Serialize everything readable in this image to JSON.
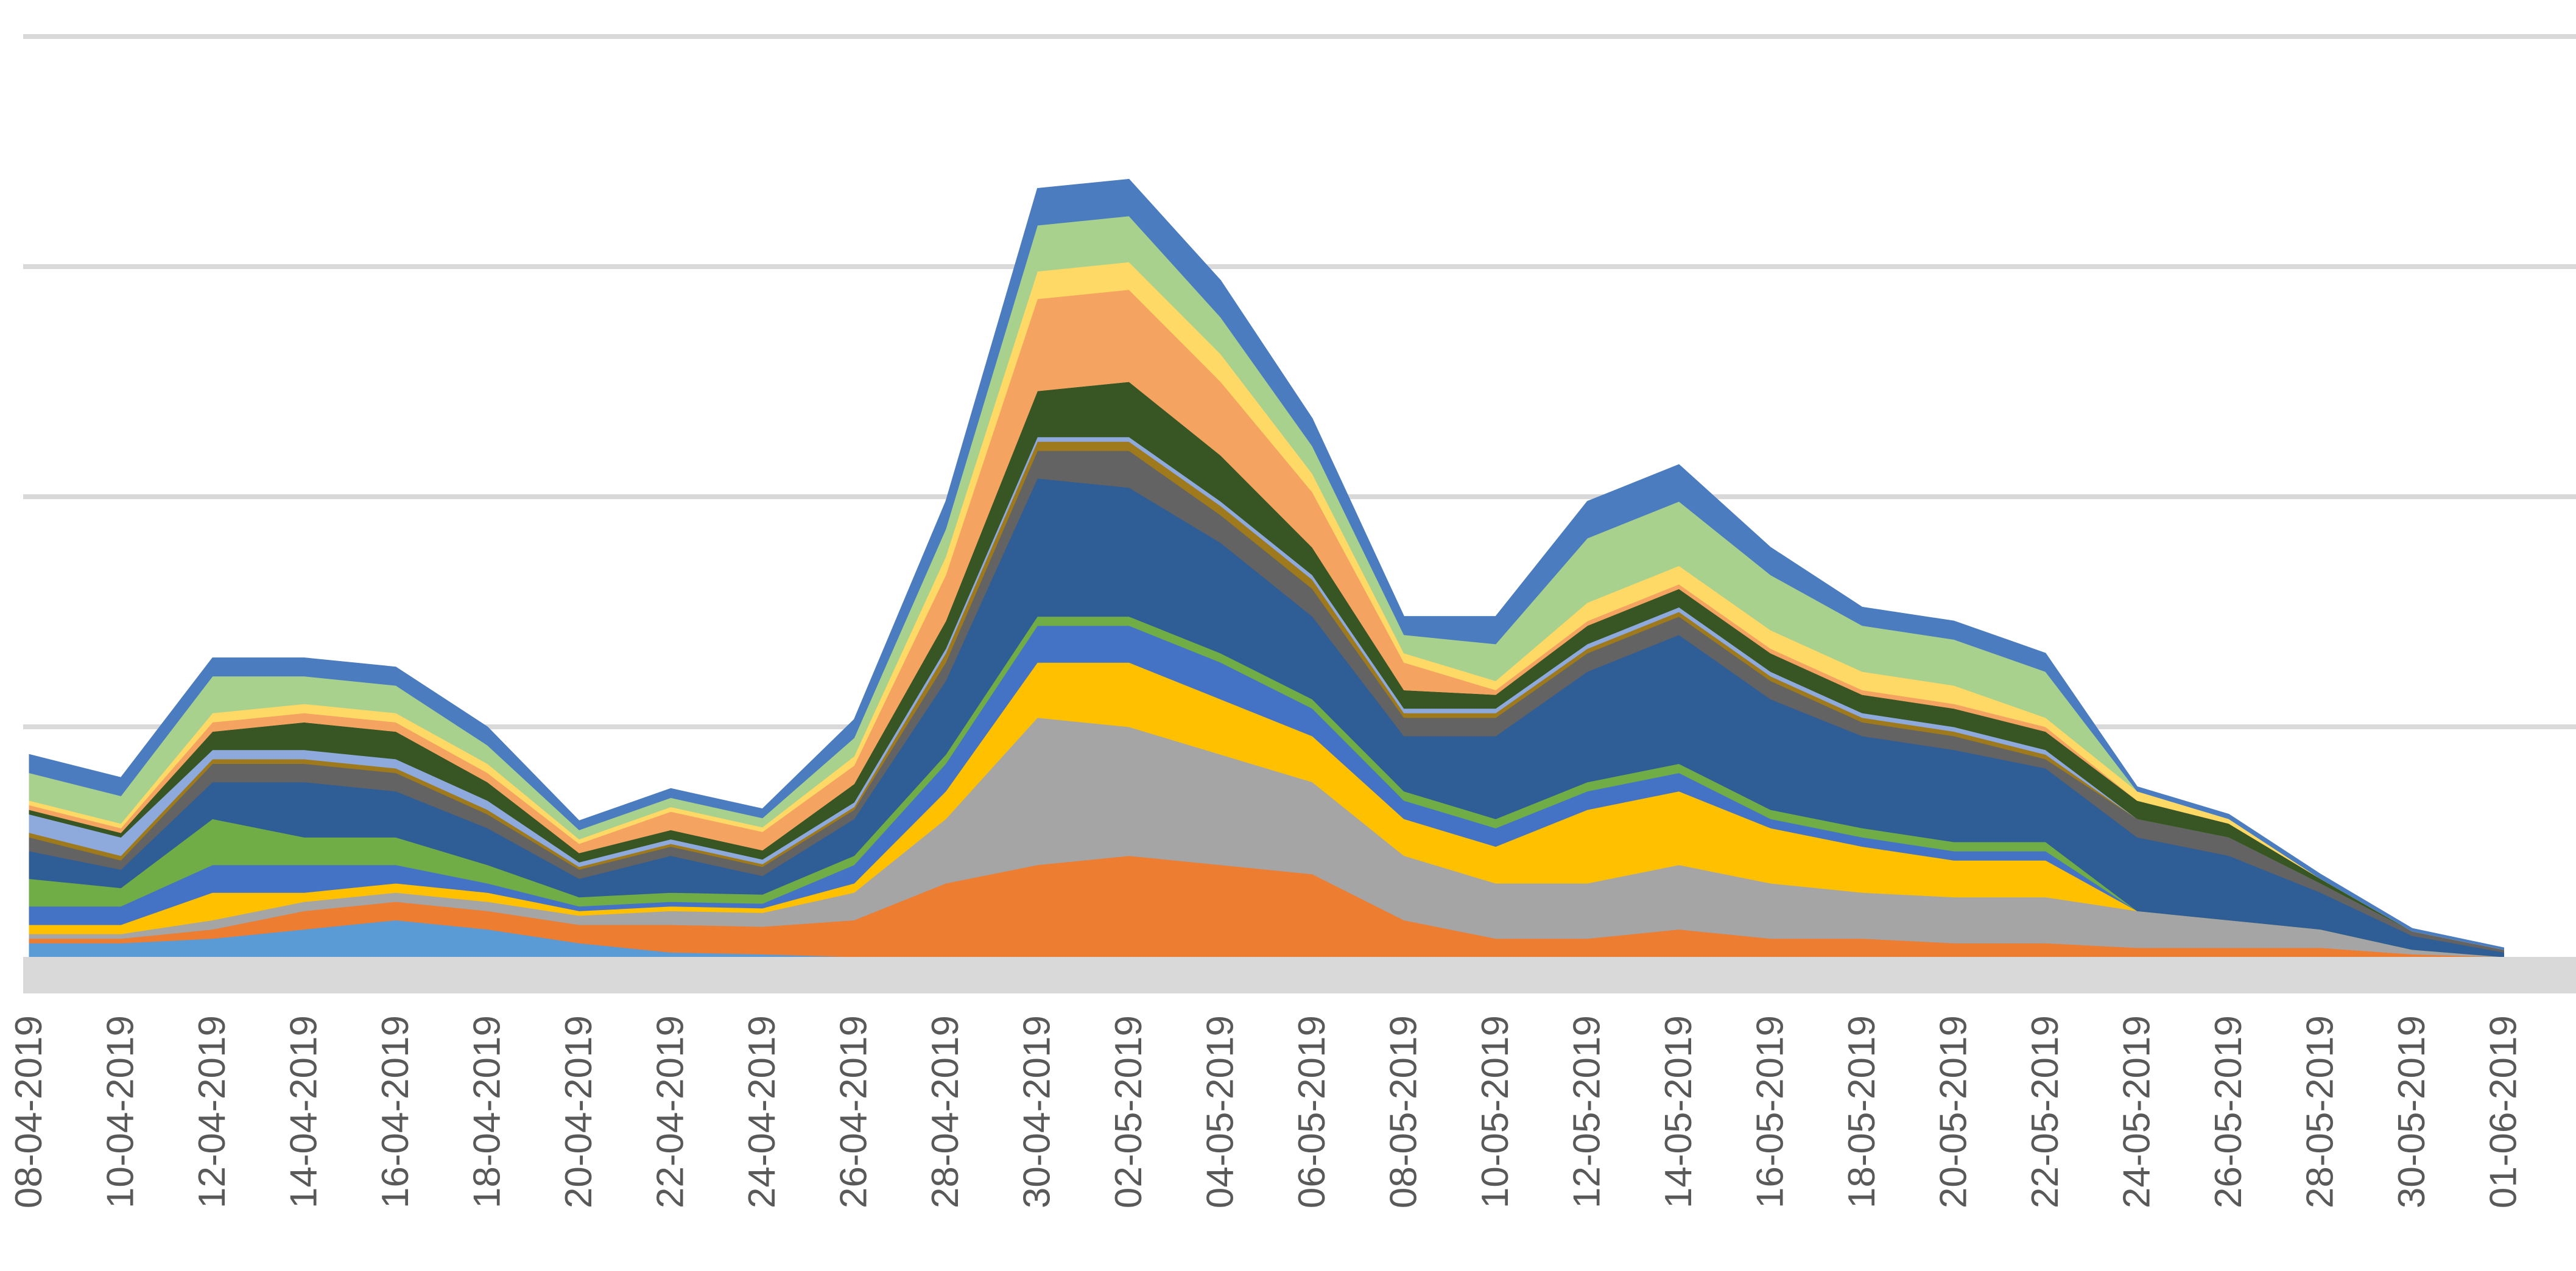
{
  "chart_data": {
    "type": "area",
    "stacked": true,
    "title": "",
    "xlabel": "",
    "ylabel": "",
    "grid": true,
    "legend": "none",
    "y_tick_labels_visible": false,
    "x_range": [
      "08-04-2019",
      "01-06-2019"
    ],
    "ylim": [
      0,
      100
    ],
    "gridlines": [
      25,
      50,
      75,
      100
    ],
    "x_tick_labels": [
      "08-04-2019",
      "10-04-2019",
      "12-04-2019",
      "14-04-2019",
      "16-04-2019",
      "18-04-2019",
      "20-04-2019",
      "22-04-2019",
      "24-04-2019",
      "26-04-2019",
      "28-04-2019",
      "30-04-2019",
      "02-05-2019",
      "04-05-2019",
      "06-05-2019",
      "08-05-2019",
      "10-05-2019",
      "12-05-2019",
      "14-05-2019",
      "16-05-2019",
      "18-05-2019",
      "20-05-2019",
      "22-05-2019",
      "24-05-2019",
      "26-05-2019",
      "28-05-2019",
      "30-05-2019",
      "01-06-2019"
    ],
    "x": [
      "08-04-2019",
      "10-04-2019",
      "12-04-2019",
      "14-04-2019",
      "16-04-2019",
      "18-04-2019",
      "20-04-2019",
      "22-04-2019",
      "24-04-2019",
      "26-04-2019",
      "28-04-2019",
      "30-04-2019",
      "02-05-2019",
      "04-05-2019",
      "06-05-2019",
      "08-05-2019",
      "10-05-2019",
      "12-05-2019",
      "14-05-2019",
      "16-05-2019",
      "18-05-2019",
      "20-05-2019",
      "22-05-2019",
      "24-05-2019",
      "26-05-2019",
      "28-05-2019",
      "30-05-2019",
      "01-06-2019"
    ],
    "series": [
      {
        "color": "#5b9bd5",
        "values": [
          1.5,
          1.5,
          2,
          3,
          4,
          3,
          1.5,
          0.5,
          0.3,
          0,
          0,
          0,
          0,
          0,
          0,
          0,
          0,
          0,
          0,
          0,
          0,
          0,
          0,
          0,
          0,
          0,
          0,
          0
        ]
      },
      {
        "color": "#ed7d31",
        "values": [
          0.5,
          0.5,
          1,
          2,
          2,
          2,
          2,
          3,
          3,
          4,
          8,
          10,
          11,
          10,
          9,
          4,
          2,
          2,
          3,
          2,
          2,
          1.5,
          1.5,
          1,
          1,
          1,
          0.3,
          0
        ]
      },
      {
        "color": "#a5a5a5",
        "values": [
          0.5,
          0.5,
          1,
          1,
          1,
          1,
          1,
          1.5,
          1.5,
          3,
          7,
          16,
          14,
          12,
          10,
          7,
          6,
          6,
          7,
          6,
          5,
          5,
          5,
          4,
          3,
          2,
          0.5,
          0
        ]
      },
      {
        "color": "#ffc000",
        "values": [
          1,
          1,
          3,
          1,
          1,
          1,
          0.5,
          0.5,
          0.5,
          1,
          3,
          6,
          7,
          6,
          5,
          4,
          4,
          8,
          8,
          6,
          5,
          4,
          4,
          0,
          0,
          0,
          0,
          0
        ]
      },
      {
        "color": "#4472c4",
        "values": [
          2,
          2,
          3,
          3,
          2,
          1,
          0.5,
          0.5,
          0.5,
          2,
          3,
          4,
          4,
          4,
          3,
          2,
          2,
          2,
          2,
          1,
          1,
          1,
          1,
          0,
          0,
          0,
          0,
          0
        ]
      },
      {
        "color": "#70ad47",
        "values": [
          3,
          2,
          5,
          3,
          3,
          2,
          1,
          1,
          1,
          1,
          1,
          1,
          1,
          1,
          1,
          1,
          1,
          1,
          1,
          1,
          1,
          1,
          1,
          0,
          0,
          0,
          0,
          0
        ]
      },
      {
        "color": "#2f5d95",
        "values": [
          3,
          2,
          4,
          6,
          5,
          4,
          2,
          4,
          2,
          4,
          8,
          15,
          14,
          12,
          9,
          6,
          9,
          12,
          14,
          12,
          10,
          10,
          8,
          8,
          7,
          4,
          1.5,
          0.5
        ]
      },
      {
        "color": "#636363",
        "values": [
          1.5,
          1,
          2,
          2,
          2,
          1.5,
          1,
          1,
          1,
          1,
          2,
          3,
          4,
          3,
          3,
          2,
          2,
          2,
          2,
          2,
          1.5,
          1.5,
          1,
          2,
          2,
          1,
          0.5,
          0.3
        ]
      },
      {
        "color": "#9e7a1c",
        "values": [
          0.5,
          0.5,
          0.5,
          0.5,
          0.5,
          0.5,
          0.3,
          0.3,
          0.3,
          0.3,
          1,
          1,
          1,
          1,
          1,
          0.5,
          0.5,
          0.5,
          0.5,
          0.5,
          0.5,
          0.5,
          0.5,
          0,
          0,
          0,
          0,
          0
        ]
      },
      {
        "color": "#8ea9db",
        "values": [
          2,
          2,
          1,
          1,
          1,
          1,
          0.5,
          0.5,
          0.5,
          0.5,
          0.5,
          0.5,
          0.5,
          0.5,
          0.5,
          0.5,
          0.5,
          0.5,
          0.5,
          0.5,
          0.5,
          0.5,
          0.5,
          0,
          0,
          0,
          0,
          0
        ]
      },
      {
        "color": "#375623",
        "values": [
          0.5,
          0.5,
          2,
          3,
          3,
          2,
          1,
          1,
          1,
          2,
          3,
          5,
          6,
          5,
          3,
          2,
          1.5,
          2,
          2,
          2,
          2,
          2,
          2,
          2,
          1.5,
          0.5,
          0,
          0
        ]
      },
      {
        "color": "#f4b183",
        "values": [
          0,
          0,
          0,
          0,
          0,
          0,
          0,
          0,
          0,
          0,
          0,
          0,
          0,
          0,
          0,
          0,
          0,
          0,
          0,
          0,
          0,
          0,
          0,
          0,
          0,
          0,
          0,
          0
        ]
      },
      {
        "color": "#f4a460",
        "values": [
          0.5,
          0.5,
          1,
          1,
          1,
          1,
          1,
          2,
          2,
          2,
          5,
          10,
          10,
          8,
          6,
          3,
          0.5,
          0.5,
          0.5,
          0.5,
          0.5,
          0.5,
          0.5,
          0,
          0,
          0,
          0,
          0
        ]
      },
      {
        "color": "#ffd966",
        "values": [
          0.5,
          0.5,
          1,
          1,
          1,
          1,
          0.5,
          0.5,
          0.5,
          1,
          2,
          3,
          3,
          3,
          2,
          1,
          1,
          2,
          2,
          2,
          2,
          2,
          1,
          1,
          0.5,
          0,
          0,
          0
        ]
      },
      {
        "color": "#a9d18e",
        "values": [
          3,
          3,
          4,
          3,
          3,
          2,
          1,
          1,
          1,
          2,
          3,
          5,
          5,
          4,
          3,
          2,
          4,
          7,
          7,
          6,
          5,
          5,
          5,
          0,
          0,
          0,
          0,
          0
        ]
      },
      {
        "color": "#4a7cbf",
        "values": [
          2,
          2,
          2,
          2,
          2,
          2,
          1,
          1,
          1,
          2,
          3,
          4,
          4,
          4,
          3,
          2,
          3,
          4,
          4,
          3,
          2,
          2,
          2,
          0.5,
          0.5,
          0.5,
          0.3,
          0.2
        ]
      }
    ]
  }
}
